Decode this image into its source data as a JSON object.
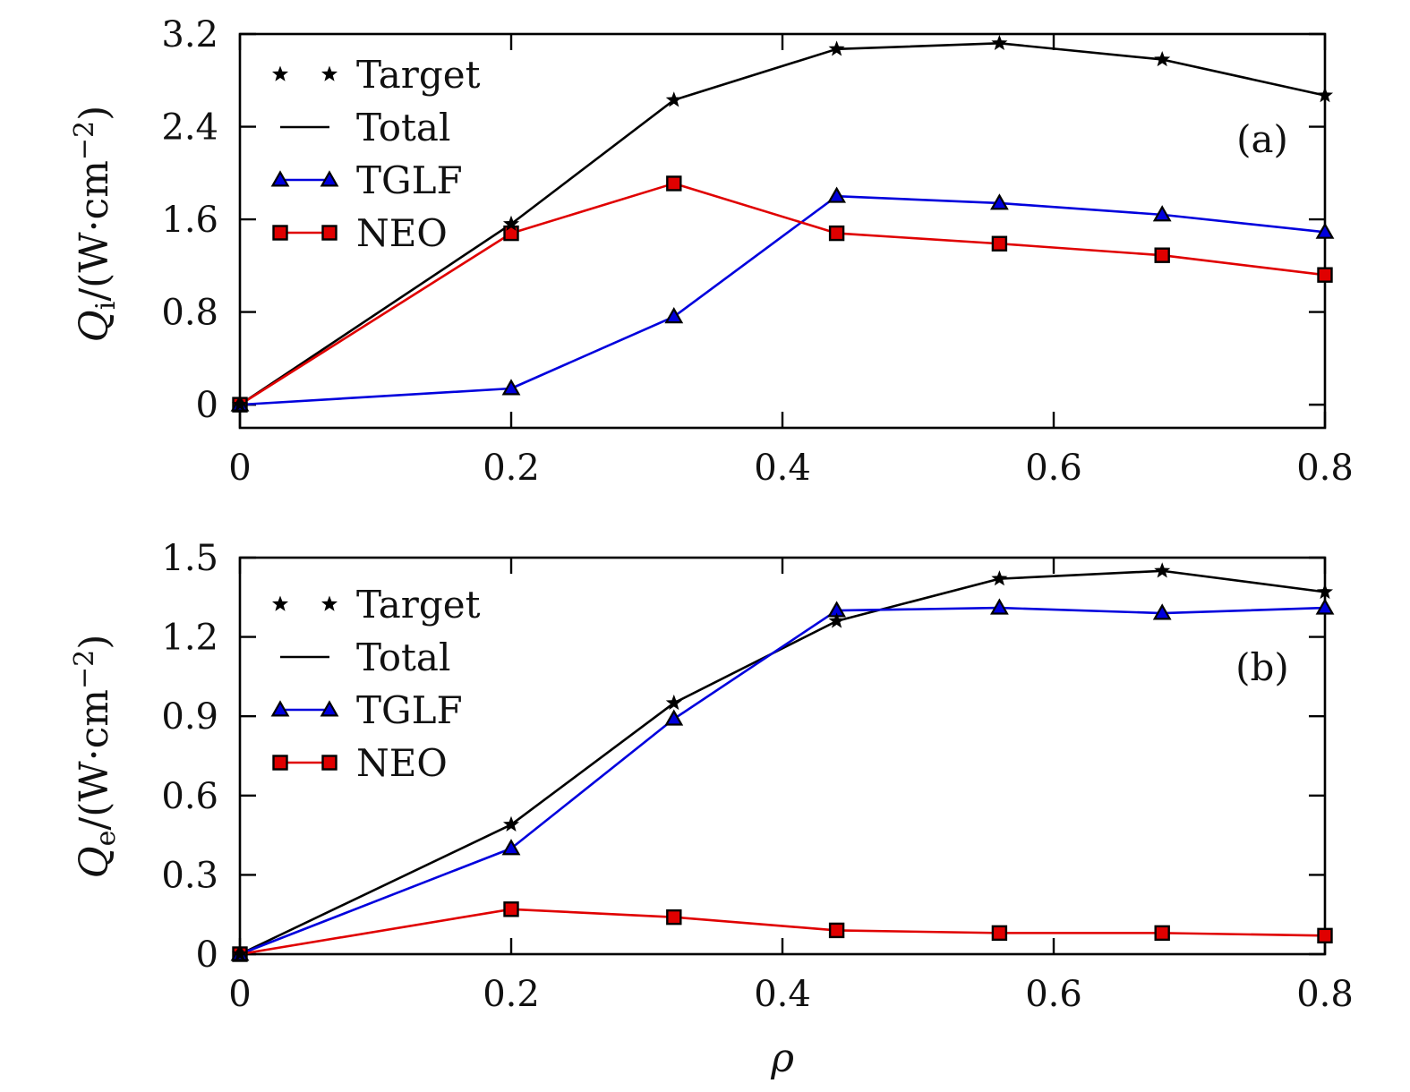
{
  "chart_data": [
    {
      "type": "line",
      "panel": "(a)",
      "xlabel": "ρ",
      "ylabel": {
        "var": "Q",
        "sub": "i",
        "unit_pre": "/(W·cm",
        "unit_sup": "−2",
        "unit_post": ")"
      },
      "xlim": [
        0,
        0.8
      ],
      "ylim": [
        -0.2,
        3.2
      ],
      "xticks": [
        0,
        0.2,
        0.4,
        0.6,
        0.8
      ],
      "xtick_labels": [
        "0",
        "0.2",
        "0.4",
        "0.6",
        "0.8"
      ],
      "yticks": [
        0,
        0.8,
        1.6,
        2.4,
        3.2
      ],
      "ytick_labels": [
        "0",
        "0.8",
        "1.6",
        "2.4",
        "3.2"
      ],
      "x": [
        0,
        0.2,
        0.32,
        0.44,
        0.56,
        0.68,
        0.8
      ],
      "series": [
        {
          "name": "Target",
          "color": "#000000",
          "marker": "star",
          "line": false,
          "values": [
            0,
            1.56,
            2.63,
            3.07,
            3.12,
            2.98,
            2.67
          ]
        },
        {
          "name": "Total",
          "color": "#000000",
          "marker": "none",
          "line": true,
          "values": [
            0,
            1.56,
            2.63,
            3.07,
            3.12,
            2.98,
            2.67
          ]
        },
        {
          "name": "TGLF",
          "color": "#0000dd",
          "marker": "triangle",
          "line": true,
          "values": [
            0,
            0.14,
            0.76,
            1.8,
            1.74,
            1.64,
            1.49
          ]
        },
        {
          "name": "NEO",
          "color": "#e00000",
          "marker": "square",
          "line": true,
          "values": [
            0,
            1.48,
            1.91,
            1.48,
            1.39,
            1.29,
            1.12
          ]
        }
      ],
      "legend": [
        "Target",
        "Total",
        "TGLF",
        "NEO"
      ],
      "legend_position": "top-left"
    },
    {
      "type": "line",
      "panel": "(b)",
      "xlabel": "ρ",
      "ylabel": {
        "var": "Q",
        "sub": "e",
        "unit_pre": "/(W·cm",
        "unit_sup": "−2",
        "unit_post": ")"
      },
      "xlim": [
        0,
        0.8
      ],
      "ylim": [
        0,
        1.5
      ],
      "xticks": [
        0,
        0.2,
        0.4,
        0.6,
        0.8
      ],
      "xtick_labels": [
        "0",
        "0.2",
        "0.4",
        "0.6",
        "0.8"
      ],
      "yticks": [
        0,
        0.3,
        0.6,
        0.9,
        1.2,
        1.5
      ],
      "ytick_labels": [
        "0",
        "0.3",
        "0.6",
        "0.9",
        "1.2",
        "1.5"
      ],
      "x": [
        0,
        0.2,
        0.32,
        0.44,
        0.56,
        0.68,
        0.8
      ],
      "series": [
        {
          "name": "Target",
          "color": "#000000",
          "marker": "star",
          "line": false,
          "values": [
            0,
            0.49,
            0.95,
            1.26,
            1.42,
            1.45,
            1.37
          ]
        },
        {
          "name": "Total",
          "color": "#000000",
          "marker": "none",
          "line": true,
          "values": [
            0,
            0.49,
            0.95,
            1.26,
            1.42,
            1.45,
            1.37
          ]
        },
        {
          "name": "TGLF",
          "color": "#0000dd",
          "marker": "triangle",
          "line": true,
          "values": [
            0,
            0.4,
            0.89,
            1.3,
            1.31,
            1.29,
            1.31
          ]
        },
        {
          "name": "NEO",
          "color": "#e00000",
          "marker": "square",
          "line": true,
          "values": [
            0,
            0.17,
            0.14,
            0.09,
            0.08,
            0.08,
            0.07
          ]
        }
      ],
      "legend": [
        "Target",
        "Total",
        "TGLF",
        "NEO"
      ],
      "legend_position": "top-left"
    }
  ]
}
